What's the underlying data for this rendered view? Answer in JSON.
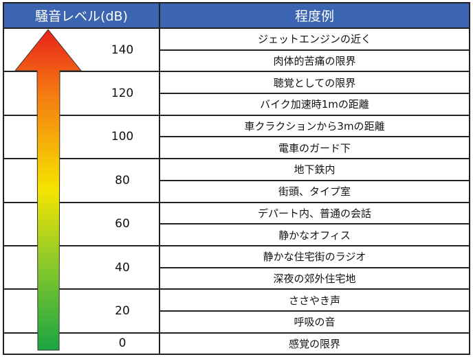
{
  "header": {
    "level": "騒音レベル(dB)",
    "example": "程度例"
  },
  "groups": [
    {
      "level": "140",
      "examples": [
        "ジェットエンジンの近く",
        "肉体的苦痛の限界"
      ]
    },
    {
      "level": "120",
      "examples": [
        "聴覚としての限界",
        "バイク加速時1mの距離"
      ]
    },
    {
      "level": "100",
      "examples": [
        "車クラクションから3mの距離",
        "電車のガード下"
      ]
    },
    {
      "level": "80",
      "examples": [
        "地下鉄内",
        "街頭、タイプ室"
      ]
    },
    {
      "level": "60",
      "examples": [
        "デパート内、普通の会話",
        "静かなオフィス"
      ]
    },
    {
      "level": "40",
      "examples": [
        "静かな住宅街のラジオ",
        "深夜の郊外住宅地"
      ]
    },
    {
      "level": "20",
      "examples": [
        "ささやき声",
        "呼吸の音"
      ]
    },
    {
      "level": "0",
      "examples": [
        "感覚の限界"
      ]
    }
  ],
  "colors": {
    "header": "#3b64b1",
    "arrow_top": "#e8231c",
    "arrow_mid": "#f5e400",
    "arrow_bottom": "#1aa541"
  }
}
